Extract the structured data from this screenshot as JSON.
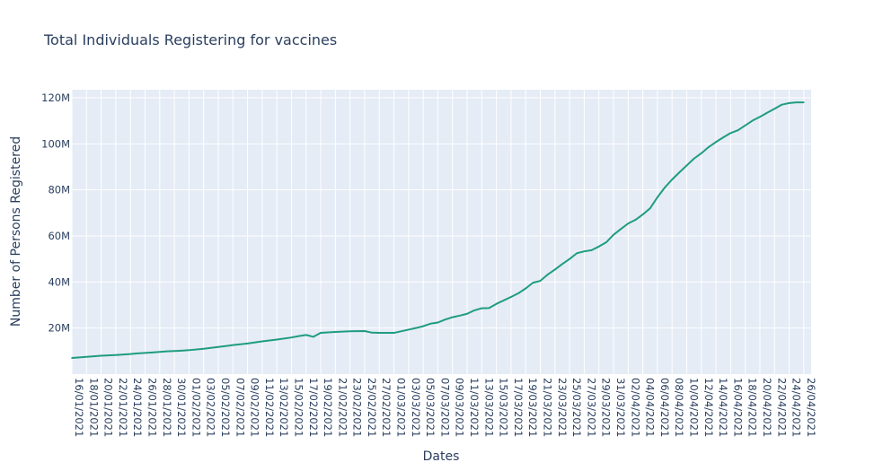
{
  "chart_data": {
    "type": "line",
    "title": "Total Individuals Registering for vaccines",
    "xlabel": "Dates",
    "ylabel": "Number of Persons Registered",
    "line_color": "#1f9c7f",
    "plot_bg": "#e5ecf6",
    "grid_color": "#ffffff",
    "grid": true,
    "ylim": [
      0,
      123500000
    ],
    "y_ticks": [
      {
        "value": 20000000,
        "label": "20M"
      },
      {
        "value": 40000000,
        "label": "40M"
      },
      {
        "value": 60000000,
        "label": "60M"
      },
      {
        "value": 80000000,
        "label": "80M"
      },
      {
        "value": 100000000,
        "label": "100M"
      },
      {
        "value": 120000000,
        "label": "120M"
      }
    ],
    "x_start": "16/01/2021",
    "x_end": "27/04/2021",
    "x_tick_labels": [
      "16/01/2021",
      "18/01/2021",
      "20/01/2021",
      "22/01/2021",
      "24/01/2021",
      "26/01/2021",
      "28/01/2021",
      "30/01/2021",
      "01/02/2021",
      "03/02/2021",
      "05/02/2021",
      "07/02/2021",
      "09/02/2021",
      "11/02/2021",
      "13/02/2021",
      "15/02/2021",
      "17/02/2021",
      "19/02/2021",
      "21/02/2021",
      "23/02/2021",
      "25/02/2021",
      "27/02/2021",
      "01/03/2021",
      "03/03/2021",
      "05/03/2021",
      "07/03/2021",
      "09/03/2021",
      "11/03/2021",
      "13/03/2021",
      "15/03/2021",
      "17/03/2021",
      "19/03/2021",
      "21/03/2021",
      "23/03/2021",
      "25/03/2021",
      "27/03/2021",
      "29/03/2021",
      "31/03/2021",
      "02/04/2021",
      "04/04/2021",
      "06/04/2021",
      "08/04/2021",
      "10/04/2021",
      "12/04/2021",
      "14/04/2021",
      "16/04/2021",
      "18/04/2021",
      "20/04/2021",
      "22/04/2021",
      "24/04/2021",
      "26/04/2021"
    ],
    "series": [
      {
        "x": [
          "16/01/2021",
          "18/01/2021",
          "20/01/2021",
          "22/01/2021",
          "24/01/2021",
          "25/01/2021",
          "27/01/2021",
          "29/01/2021",
          "31/01/2021",
          "01/02/2021",
          "03/02/2021",
          "05/02/2021",
          "07/02/2021",
          "09/02/2021",
          "11/02/2021",
          "13/02/2021",
          "15/02/2021",
          "16/02/2021",
          "17/02/2021",
          "18/02/2021",
          "19/02/2021",
          "21/02/2021",
          "23/02/2021",
          "25/02/2021",
          "26/02/2021",
          "27/02/2021",
          "01/03/2021",
          "03/03/2021",
          "04/03/2021",
          "05/03/2021",
          "06/03/2021",
          "07/03/2021",
          "08/03/2021",
          "09/03/2021",
          "10/03/2021",
          "11/03/2021",
          "12/03/2021",
          "13/03/2021",
          "14/03/2021",
          "15/03/2021",
          "17/03/2021",
          "18/03/2021",
          "19/03/2021",
          "20/03/2021",
          "21/03/2021",
          "22/03/2021",
          "23/03/2021",
          "24/03/2021",
          "25/03/2021",
          "26/03/2021",
          "27/03/2021",
          "28/03/2021",
          "29/03/2021",
          "30/03/2021",
          "31/03/2021",
          "01/04/2021",
          "02/04/2021",
          "03/04/2021",
          "04/04/2021",
          "05/04/2021",
          "06/04/2021",
          "07/04/2021",
          "08/04/2021",
          "09/04/2021",
          "10/04/2021",
          "11/04/2021",
          "12/04/2021",
          "13/04/2021",
          "14/04/2021",
          "15/04/2021",
          "16/04/2021",
          "17/04/2021",
          "18/04/2021",
          "19/04/2021",
          "20/04/2021",
          "21/04/2021",
          "22/04/2021",
          "23/04/2021",
          "24/04/2021",
          "25/04/2021",
          "26/04/2021"
        ],
        "y": [
          7000000,
          7500000,
          8000000,
          8300000,
          8700000,
          9000000,
          9400000,
          9900000,
          10200000,
          10400000,
          11000000,
          11800000,
          12600000,
          13300000,
          14200000,
          15000000,
          15900000,
          16500000,
          17000000,
          16200000,
          17900000,
          18300000,
          18600000,
          18700000,
          18000000,
          17900000,
          17900000,
          19300000,
          20000000,
          20800000,
          21900000,
          22400000,
          23700000,
          24700000,
          25400000,
          26200000,
          27700000,
          28600000,
          28700000,
          30500000,
          33500000,
          35100000,
          37200000,
          39700000,
          40500000,
          43200000,
          45400000,
          47800000,
          50000000,
          52500000,
          53300000,
          53800000,
          55400000,
          57200000,
          60500000,
          63000000,
          65400000,
          67000000,
          69300000,
          72000000,
          76800000,
          81000000,
          84500000,
          87600000,
          90600000,
          93600000,
          95900000,
          98600000,
          100800000,
          102800000,
          104700000,
          105900000,
          108000000,
          110100000,
          111700000,
          113500000,
          115200000,
          117000000,
          117700000,
          118000000,
          118000000
        ]
      }
    ]
  }
}
